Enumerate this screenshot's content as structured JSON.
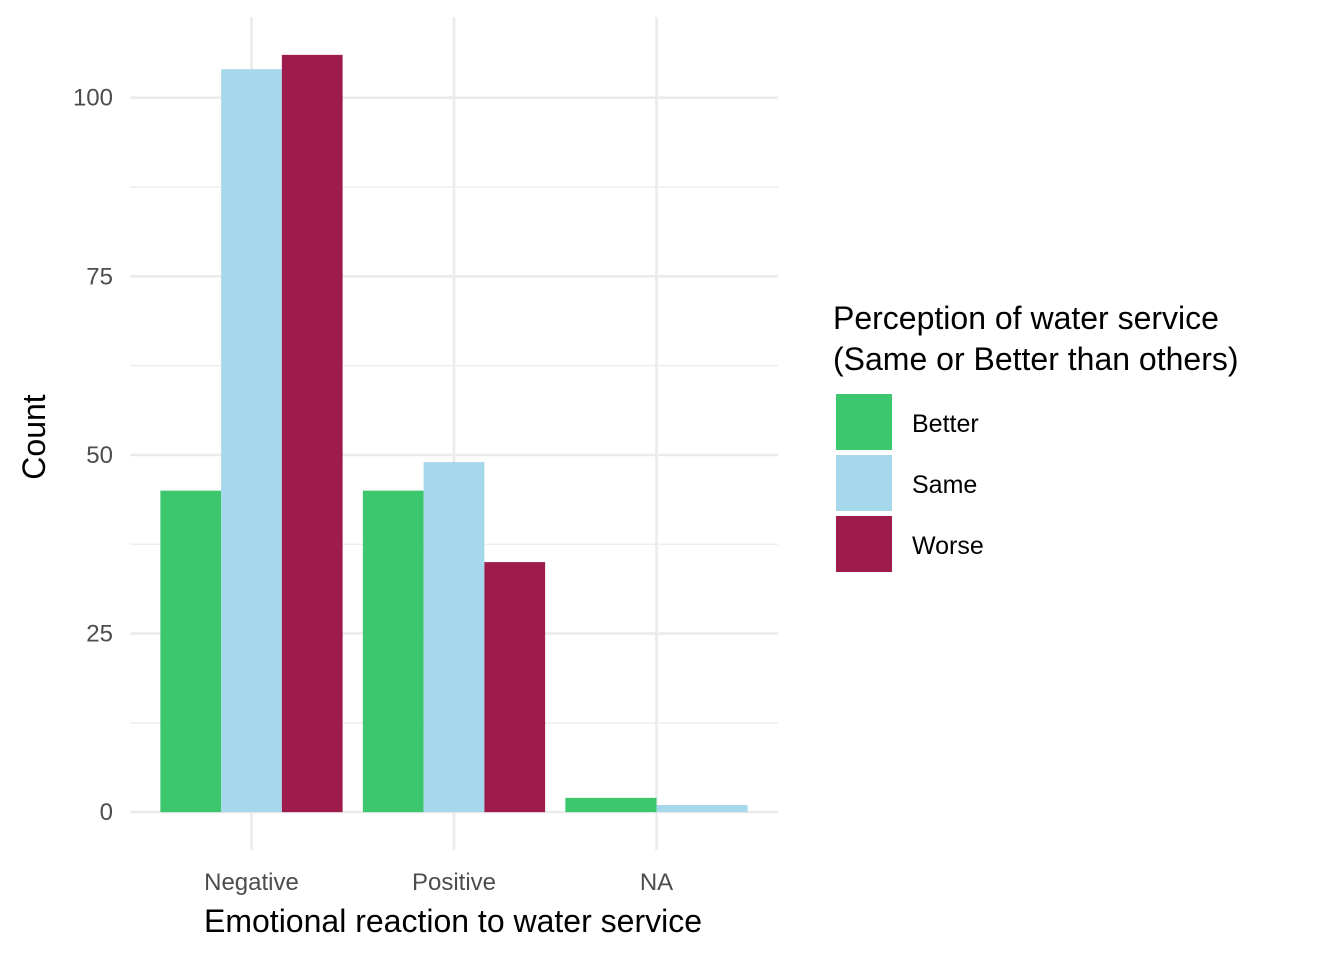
{
  "chart_data": {
    "type": "bar",
    "xlabel": "Emotional reaction to water service",
    "ylabel": "Count",
    "categories": [
      "Negative",
      "Positive",
      "NA"
    ],
    "series": [
      {
        "name": "Better",
        "color": "#3cc76e",
        "values": [
          45,
          45,
          2
        ]
      },
      {
        "name": "Same",
        "color": "#a6d8eb",
        "values": [
          104,
          49,
          1
        ]
      },
      {
        "name": "Worse",
        "color": "#9e1c4c",
        "values": [
          106,
          35,
          null
        ]
      }
    ],
    "yticks": [
      0,
      25,
      50,
      75,
      100
    ],
    "ylim": [
      -5.3,
      111.3
    ],
    "grid": true,
    "legend": {
      "title_line1": "Perception of water service",
      "title_line2": "(Same or Better than others)",
      "position": "right"
    }
  }
}
